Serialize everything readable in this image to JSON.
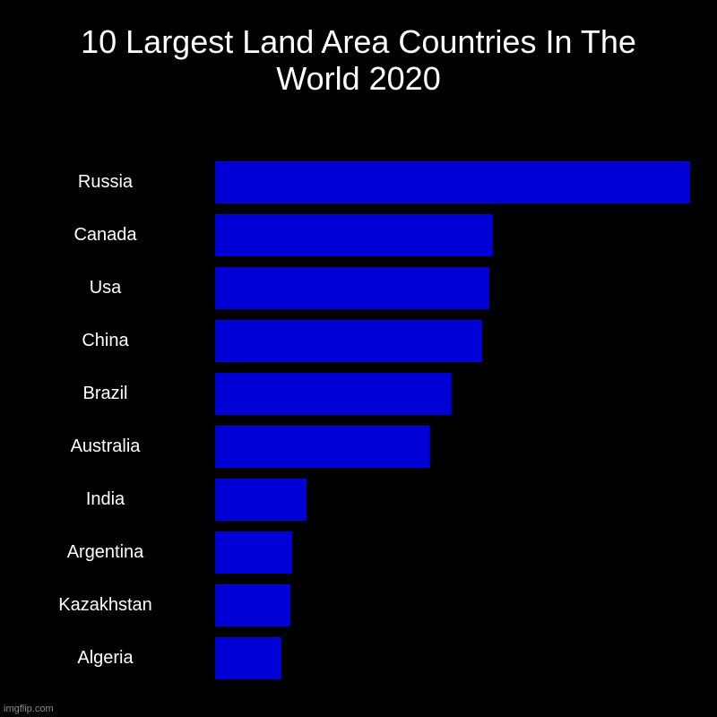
{
  "chart_data": {
    "type": "bar",
    "orientation": "horizontal",
    "title": "10 Largest Land Area Countries In The World 2020",
    "title_lines": [
      "10 Largest Land Area Countries In The",
      "World 2020"
    ],
    "categories": [
      "Russia",
      "Canada",
      "Usa",
      "China",
      "Brazil",
      "Australia",
      "India",
      "Argentina",
      "Kazakhstan",
      "Algeria"
    ],
    "values": [
      17.1,
      9.98,
      9.83,
      9.6,
      8.5,
      7.7,
      3.29,
      2.78,
      2.72,
      2.38
    ],
    "value_unit": "million km² (estimated, no axis shown)",
    "xlabel": "",
    "ylabel": "",
    "xlim": [
      0,
      17.1
    ],
    "grid": false,
    "legend": null,
    "bar_color": "#0000d6",
    "background": "#000000"
  },
  "watermark": "imgflip.com",
  "colors": {
    "bar": "#0000d6",
    "background": "#000000",
    "text": "#ffffff",
    "watermark": "#8a8a8a"
  }
}
